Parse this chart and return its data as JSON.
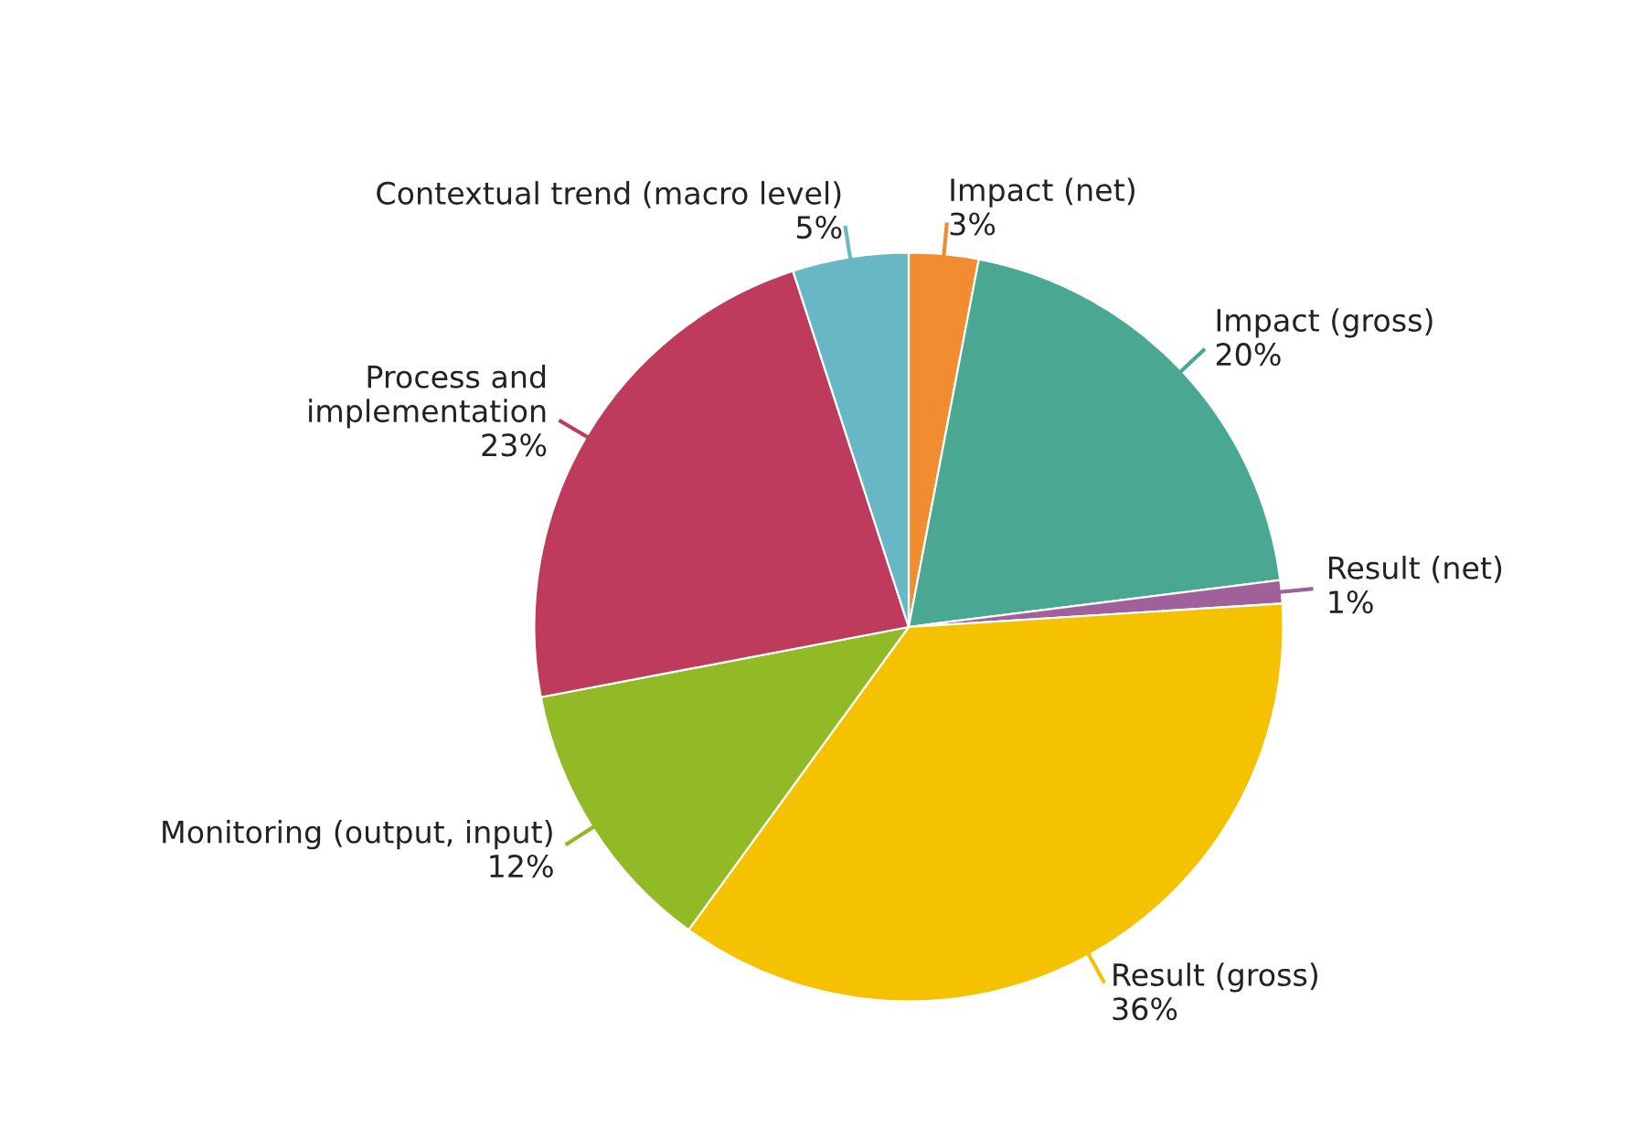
{
  "chart_data": {
    "type": "pie",
    "categories": [
      "Impact (net)",
      "Impact (gross)",
      "Result (net)",
      "Result (gross)",
      "Monitoring (output, input)",
      "Process and\nimplementation",
      "Contextual trend (macro level)"
    ],
    "values": [
      3,
      20,
      1,
      36,
      12,
      23,
      5
    ],
    "value_labels": [
      "3%",
      "20%",
      "1%",
      "36%",
      "12%",
      "23%",
      "5%"
    ],
    "colors": [
      "#f28c30",
      "#4aa892",
      "#a0609a",
      "#f4c200",
      "#92b926",
      "#be3b5e",
      "#68b7c4"
    ],
    "legend": false
  }
}
